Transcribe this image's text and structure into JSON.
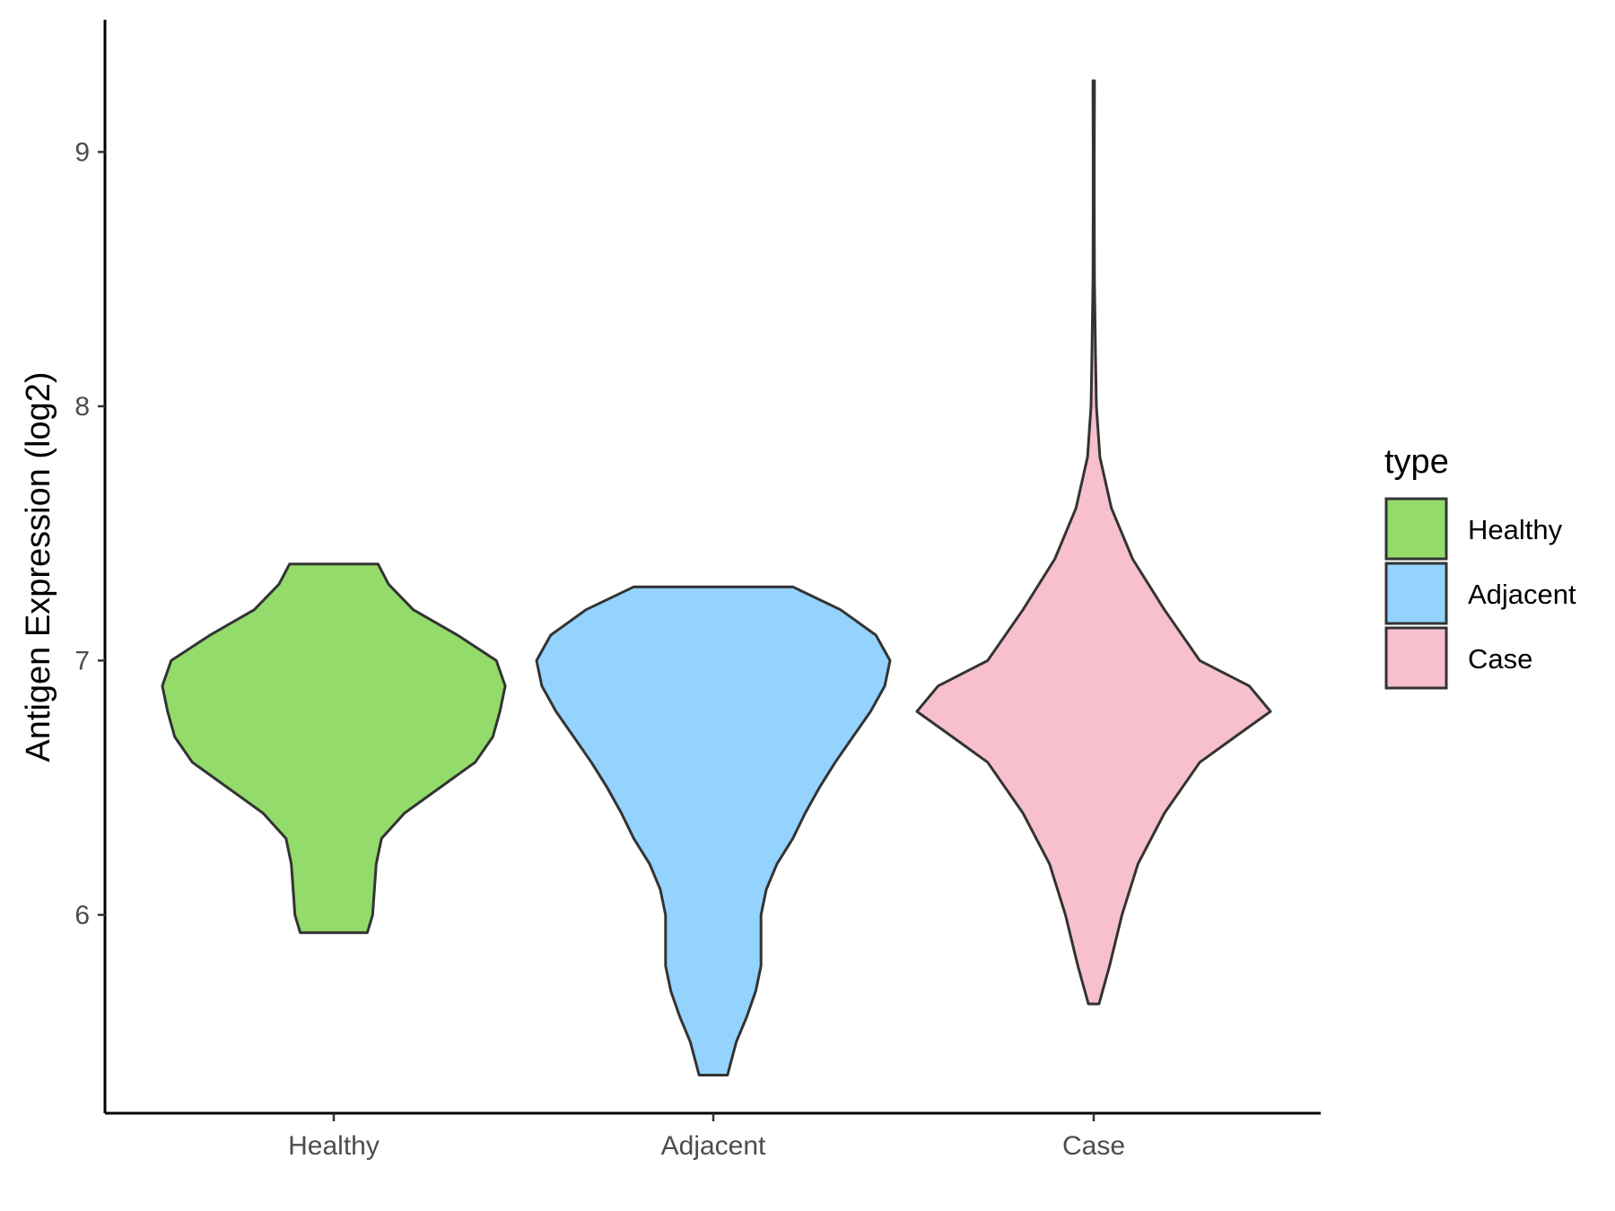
{
  "chart_data": {
    "type": "violin",
    "ylabel": "Antigen Expression (log2)",
    "xlabel": "",
    "categories": [
      "Healthy",
      "Adjacent",
      "Case"
    ],
    "y_ticks": [
      6,
      7,
      8,
      9
    ],
    "ylim": [
      5.22,
      9.52
    ],
    "grid": false,
    "legend": {
      "title": "type",
      "position": "right",
      "items": [
        {
          "label": "Healthy",
          "color": "#93DB6A"
        },
        {
          "label": "Adjacent",
          "color": "#93D3FD"
        },
        {
          "label": "Case",
          "color": "#F7C0CC"
        }
      ]
    },
    "series": [
      {
        "category": "Healthy",
        "color": "#93DB6A",
        "min": 5.93,
        "max": 7.38,
        "profile": [
          [
            5.93,
            0.19
          ],
          [
            6.0,
            0.22
          ],
          [
            6.1,
            0.23
          ],
          [
            6.2,
            0.24
          ],
          [
            6.3,
            0.27
          ],
          [
            6.4,
            0.4
          ],
          [
            6.5,
            0.6
          ],
          [
            6.6,
            0.8
          ],
          [
            6.7,
            0.9
          ],
          [
            6.8,
            0.94
          ],
          [
            6.9,
            0.97
          ],
          [
            7.0,
            0.92
          ],
          [
            7.1,
            0.7
          ],
          [
            7.2,
            0.45
          ],
          [
            7.3,
            0.31
          ],
          [
            7.38,
            0.25
          ]
        ]
      },
      {
        "category": "Adjacent",
        "color": "#93D3FD",
        "min": 5.37,
        "max": 7.29,
        "profile": [
          [
            5.37,
            0.08
          ],
          [
            5.5,
            0.13
          ],
          [
            5.6,
            0.19
          ],
          [
            5.7,
            0.24
          ],
          [
            5.8,
            0.27
          ],
          [
            5.9,
            0.27
          ],
          [
            6.0,
            0.27
          ],
          [
            6.1,
            0.3
          ],
          [
            6.2,
            0.36
          ],
          [
            6.3,
            0.45
          ],
          [
            6.4,
            0.52
          ],
          [
            6.5,
            0.6
          ],
          [
            6.6,
            0.69
          ],
          [
            6.7,
            0.79
          ],
          [
            6.8,
            0.89
          ],
          [
            6.9,
            0.97
          ],
          [
            7.0,
            1.0
          ],
          [
            7.1,
            0.92
          ],
          [
            7.2,
            0.72
          ],
          [
            7.29,
            0.45
          ]
        ]
      },
      {
        "category": "Case",
        "color": "#F7C0CC",
        "min": 5.65,
        "max": 9.28,
        "profile": [
          [
            5.65,
            0.03
          ],
          [
            5.8,
            0.09
          ],
          [
            6.0,
            0.16
          ],
          [
            6.2,
            0.25
          ],
          [
            6.4,
            0.4
          ],
          [
            6.6,
            0.6
          ],
          [
            6.7,
            0.8
          ],
          [
            6.8,
            1.0
          ],
          [
            6.9,
            0.88
          ],
          [
            7.0,
            0.6
          ],
          [
            7.2,
            0.4
          ],
          [
            7.4,
            0.22
          ],
          [
            7.6,
            0.1
          ],
          [
            7.8,
            0.035
          ],
          [
            8.0,
            0.015
          ],
          [
            8.2,
            0.01
          ],
          [
            8.5,
            0.004
          ],
          [
            8.8,
            0.003
          ],
          [
            9.0,
            0.003
          ],
          [
            9.2,
            0.004
          ],
          [
            9.28,
            0.004
          ]
        ]
      }
    ]
  }
}
